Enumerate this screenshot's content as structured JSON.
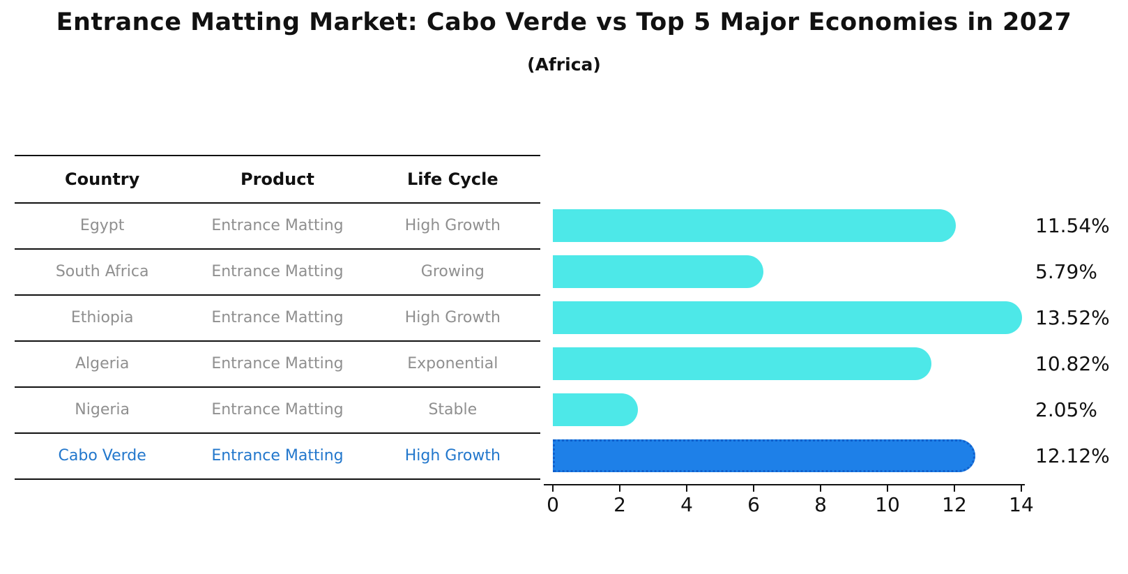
{
  "title": "Entrance Matting Market: Cabo Verde vs Top 5 Major Economies in 2027",
  "subtitle": "(Africa)",
  "colors": {
    "bar": "#4DE8E8",
    "highlight_bar": "#1E80E8",
    "highlight_bar_border": "#1060CC",
    "highlight_text": "#2277CC",
    "row_text": "#8F8F8F",
    "header_text": "#111111",
    "axis": "#111111"
  },
  "table": {
    "headers": [
      "Country",
      "Product",
      "Life Cycle"
    ],
    "rows": [
      {
        "country": "Egypt",
        "product": "Entrance Matting",
        "life_cycle": "High Growth",
        "highlight": false
      },
      {
        "country": "South Africa",
        "product": "Entrance Matting",
        "life_cycle": "Growing",
        "highlight": false
      },
      {
        "country": "Ethiopia",
        "product": "Entrance Matting",
        "life_cycle": "High Growth",
        "highlight": false
      },
      {
        "country": "Algeria",
        "product": "Entrance Matting",
        "life_cycle": "Exponential",
        "highlight": false
      },
      {
        "country": "Nigeria",
        "product": "Entrance Matting",
        "life_cycle": "Stable",
        "highlight": false
      },
      {
        "country": "Cabo Verde",
        "product": "Entrance Matting",
        "life_cycle": "High Growth",
        "highlight": true
      }
    ]
  },
  "chart_data": {
    "type": "bar",
    "orientation": "horizontal",
    "title": "Entrance Matting Market: Cabo Verde vs Top 5 Major Economies in 2027",
    "subtitle": "(Africa)",
    "categories": [
      "Egypt",
      "South Africa",
      "Ethiopia",
      "Algeria",
      "Nigeria",
      "Cabo Verde"
    ],
    "values": [
      11.54,
      5.79,
      13.52,
      10.82,
      2.05,
      12.12
    ],
    "value_labels": [
      "11.54%",
      "5.79%",
      "13.52%",
      "10.82%",
      "2.05%",
      "12.12%"
    ],
    "highlight_index": 5,
    "xlabel": "",
    "ylabel": "",
    "xlim": [
      0,
      14
    ],
    "xticks": [
      0,
      2,
      4,
      6,
      8,
      10,
      12,
      14
    ],
    "grid": false,
    "legend_position": "none"
  }
}
